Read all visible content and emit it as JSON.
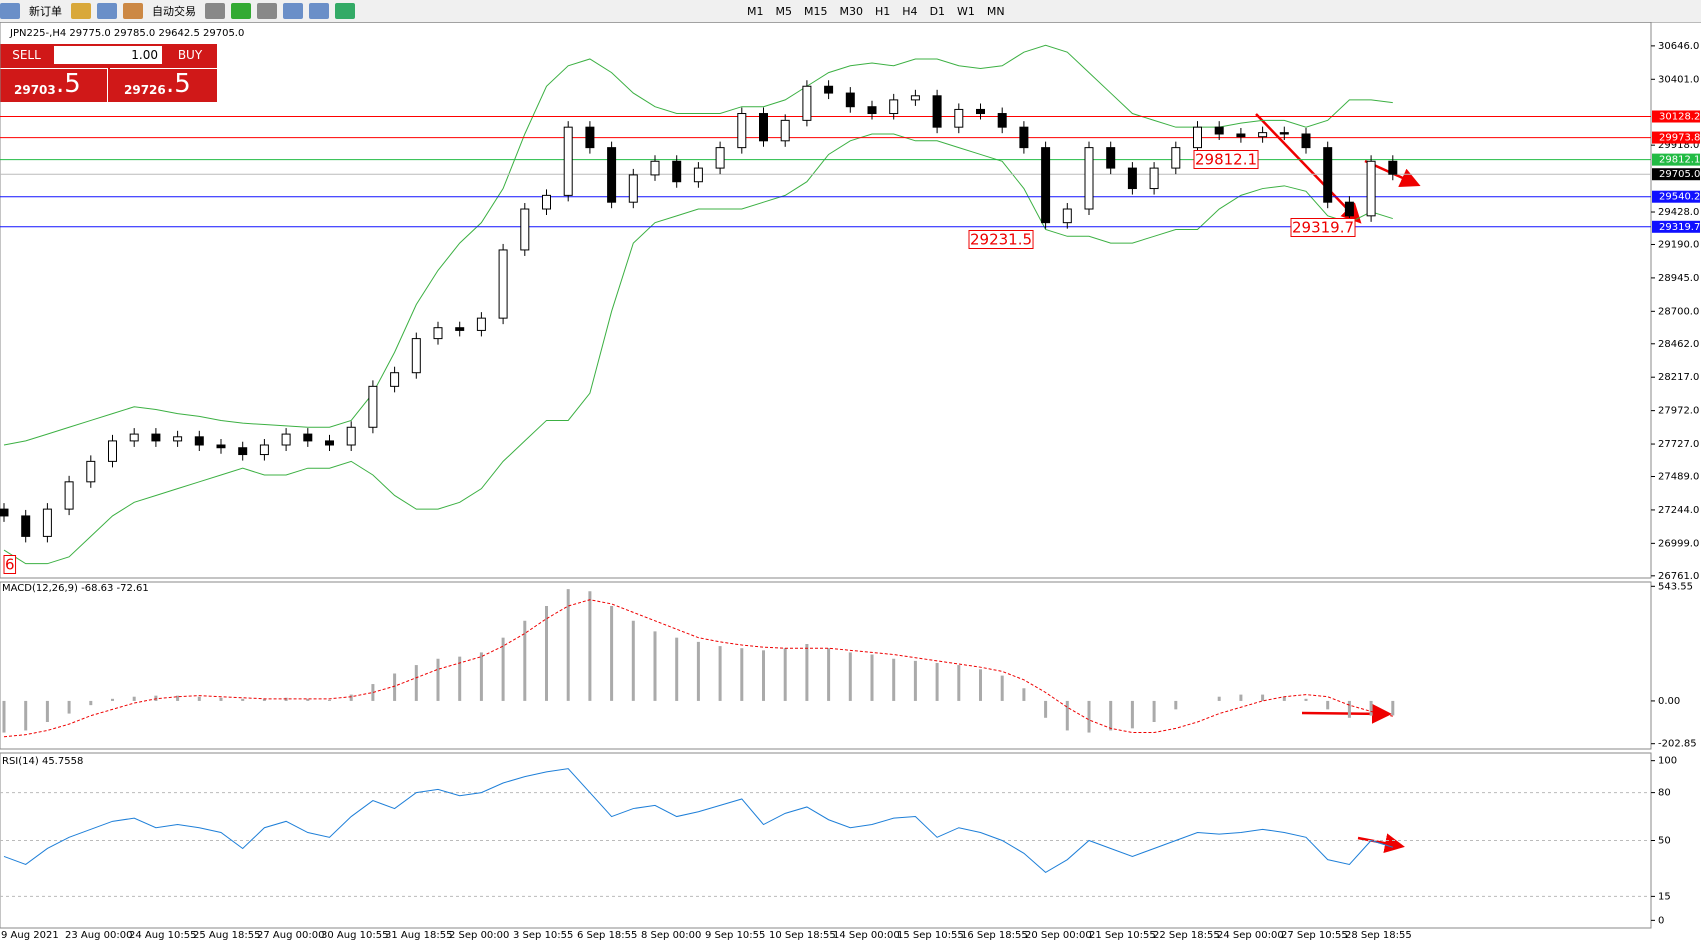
{
  "toolbar": {
    "new_order": "新订单",
    "auto_trade": "自动交易",
    "timeframes": [
      "M1",
      "M5",
      "M15",
      "M30",
      "H1",
      "H4",
      "D1",
      "W1",
      "MN"
    ]
  },
  "trade_panel": {
    "sell": "SELL",
    "buy": "BUY",
    "lots": "1.00",
    "sell_price": "29703",
    "sell_frac": ".5",
    "buy_price": "29726",
    "buy_frac": ".5"
  },
  "chart": {
    "info": "JPN225-,H4  29775.0 29785.0 29642.5 29705.0",
    "ylim": [
      26745,
      30821
    ],
    "yticks": [
      {
        "value": 30646,
        "label": "30646.0"
      },
      {
        "value": 30401,
        "label": "30401.0"
      },
      {
        "value": 29918,
        "label": "29918.0"
      },
      {
        "value": 29428,
        "label": "29428.0"
      },
      {
        "value": 29190,
        "label": "29190.0"
      },
      {
        "value": 28945,
        "label": "28945.0"
      },
      {
        "value": 28700,
        "label": "28700.0"
      },
      {
        "value": 28462,
        "label": "28462.0"
      },
      {
        "value": 28217,
        "label": "28217.0"
      },
      {
        "value": 27972,
        "label": "27972.0"
      },
      {
        "value": 27727,
        "label": "27727.0"
      },
      {
        "value": 27489,
        "label": "27489.0"
      },
      {
        "value": 27244,
        "label": "27244.0"
      },
      {
        "value": 26999,
        "label": "26999.0"
      },
      {
        "value": 26761,
        "label": "26761.0"
      }
    ],
    "levels": [
      {
        "value": 30128.2,
        "label": "30128.2",
        "color": "#ff0000"
      },
      {
        "value": 29973.8,
        "label": "29973.8",
        "color": "#ff0000"
      },
      {
        "value": 29812.1,
        "label": "29812.1",
        "color": "#22bb44"
      },
      {
        "value": 29705,
        "label": "29705.0",
        "color": "#000000"
      },
      {
        "value": 29540.2,
        "label": "29540.2",
        "color": "#1010ff"
      },
      {
        "value": 29319.7,
        "label": "29319.7",
        "color": "#1010ff"
      }
    ],
    "candles": [
      [
        27250,
        27200
      ],
      [
        27200,
        27050
      ],
      [
        27050,
        27250
      ],
      [
        27250,
        27450
      ],
      [
        27450,
        27600
      ],
      [
        27600,
        27750
      ],
      [
        27750,
        27800
      ],
      [
        27800,
        27750
      ],
      [
        27750,
        27780
      ],
      [
        27780,
        27720
      ],
      [
        27720,
        27700
      ],
      [
        27700,
        27650
      ],
      [
        27650,
        27720
      ],
      [
        27720,
        27800
      ],
      [
        27800,
        27750
      ],
      [
        27750,
        27720
      ],
      [
        27720,
        27850
      ],
      [
        27850,
        28150
      ],
      [
        28150,
        28250
      ],
      [
        28250,
        28500
      ],
      [
        28500,
        28580
      ],
      [
        28580,
        28560
      ],
      [
        28560,
        28650
      ],
      [
        28650,
        29150
      ],
      [
        29150,
        29450
      ],
      [
        29450,
        29550
      ],
      [
        29550,
        30050
      ],
      [
        30050,
        29900
      ],
      [
        29900,
        29500
      ],
      [
        29500,
        29700
      ],
      [
        29700,
        29800
      ],
      [
        29800,
        29650
      ],
      [
        29650,
        29750
      ],
      [
        29750,
        29900
      ],
      [
        29900,
        30150
      ],
      [
        30150,
        29950
      ],
      [
        29950,
        30100
      ],
      [
        30100,
        30350
      ],
      [
        30350,
        30300
      ],
      [
        30300,
        30200
      ],
      [
        30200,
        30150
      ],
      [
        30150,
        30250
      ],
      [
        30250,
        30280
      ],
      [
        30280,
        30050
      ],
      [
        30050,
        30180
      ],
      [
        30180,
        30150
      ],
      [
        30150,
        30050
      ],
      [
        30050,
        29900
      ],
      [
        29900,
        29350
      ],
      [
        29350,
        29450
      ],
      [
        29450,
        29900
      ],
      [
        29900,
        29750
      ],
      [
        29750,
        29600
      ],
      [
        29600,
        29750
      ],
      [
        29750,
        29900
      ],
      [
        29900,
        30050
      ],
      [
        30050,
        30000
      ],
      [
        30000,
        29980
      ],
      [
        29980,
        30010
      ],
      [
        30010,
        30000
      ],
      [
        30000,
        29900
      ],
      [
        29900,
        29500
      ],
      [
        29500,
        29400
      ],
      [
        29400,
        29800
      ],
      [
        29800,
        29705
      ]
    ],
    "bands": {
      "color": "#3cb043",
      "upper": [
        27720,
        27750,
        27800,
        27850,
        27900,
        27950,
        28000,
        27980,
        27950,
        27930,
        27900,
        27880,
        27870,
        27860,
        27850,
        27850,
        27900,
        28100,
        28400,
        28750,
        29000,
        29200,
        29350,
        29600,
        30000,
        30350,
        30500,
        30550,
        30450,
        30300,
        30200,
        30150,
        30150,
        30150,
        30200,
        30200,
        30250,
        30350,
        30450,
        30500,
        30520,
        30500,
        30550,
        30550,
        30500,
        30480,
        30500,
        30600,
        30650,
        30600,
        30450,
        30300,
        30150,
        30100,
        30050,
        30050,
        30050,
        30080,
        30100,
        30100,
        30050,
        30100,
        30250,
        30250,
        30230
      ],
      "lower": [
        26950,
        26850,
        26850,
        26900,
        27050,
        27200,
        27300,
        27350,
        27400,
        27450,
        27500,
        27550,
        27500,
        27500,
        27550,
        27550,
        27600,
        27500,
        27350,
        27250,
        27250,
        27300,
        27400,
        27600,
        27750,
        27900,
        27900,
        28100,
        28700,
        29200,
        29350,
        29400,
        29450,
        29450,
        29450,
        29500,
        29550,
        29650,
        29850,
        29950,
        30000,
        30000,
        29950,
        29950,
        29900,
        29850,
        29800,
        29600,
        29300,
        29250,
        29250,
        29200,
        29200,
        29250,
        29300,
        29300,
        29450,
        29550,
        29600,
        29620,
        29580,
        29400,
        29350,
        29430,
        29380
      ]
    },
    "annotations": [
      "29812.1",
      "29231.5",
      "29319.7",
      "6"
    ],
    "x_labels": [
      "9 Aug 2021",
      "23 Aug 00:00",
      "24 Aug 10:55",
      "25 Aug 18:55",
      "27 Aug 00:00",
      "30 Aug 10:55",
      "31 Aug 18:55",
      "2 Sep 00:00",
      "3 Sep 10:55",
      "6 Sep 18:55",
      "8 Sep 00:00",
      "9 Sep 10:55",
      "10 Sep 18:55",
      "14 Sep 00:00",
      "15 Sep 10:55",
      "16 Sep 18:55",
      "20 Sep 00:00",
      "21 Sep 10:55",
      "22 Sep 18:55",
      "24 Sep 00:00",
      "27 Sep 10:55",
      "28 Sep 18:55"
    ]
  },
  "macd": {
    "label": "MACD(12,26,9) -68.63 -72.61",
    "ylim": [
      -228,
      564
    ],
    "yticks": [
      543.55,
      {
        "value": 0,
        "label": "0.00"
      },
      -202.85
    ],
    "histogram": [
      -150,
      -140,
      -100,
      -60,
      -20,
      10,
      20,
      25,
      25,
      20,
      15,
      10,
      10,
      15,
      10,
      5,
      30,
      80,
      130,
      170,
      200,
      210,
      230,
      300,
      380,
      450,
      530,
      520,
      450,
      380,
      330,
      300,
      280,
      260,
      250,
      240,
      250,
      270,
      250,
      230,
      220,
      200,
      190,
      180,
      170,
      150,
      120,
      60,
      -80,
      -140,
      -150,
      -140,
      -130,
      -100,
      -40,
      0,
      20,
      30,
      30,
      20,
      10,
      -40,
      -80,
      -70,
      -68.63
    ],
    "signal": [
      -170,
      -160,
      -140,
      -110,
      -70,
      -40,
      -10,
      10,
      20,
      25,
      20,
      15,
      10,
      10,
      10,
      10,
      20,
      40,
      70,
      110,
      150,
      180,
      210,
      260,
      320,
      390,
      450,
      480,
      460,
      420,
      380,
      340,
      300,
      280,
      265,
      255,
      250,
      250,
      250,
      240,
      230,
      220,
      205,
      190,
      175,
      160,
      140,
      100,
      40,
      -30,
      -90,
      -130,
      -150,
      -150,
      -130,
      -100,
      -60,
      -30,
      0,
      20,
      30,
      20,
      -20,
      -50,
      -72.61
    ]
  },
  "rsi": {
    "label": "RSI(14) 45.7558",
    "ylim": [
      -4.8,
      104.8
    ],
    "yticks": [
      100,
      80,
      50,
      15,
      0
    ],
    "grid_levels": [
      80,
      50,
      15
    ],
    "values": [
      40,
      35,
      45,
      52,
      57,
      62,
      64,
      58,
      60,
      58,
      55,
      45,
      58,
      62,
      55,
      52,
      65,
      75,
      70,
      80,
      82,
      78,
      80,
      86,
      90,
      93,
      95,
      80,
      65,
      70,
      72,
      65,
      68,
      72,
      76,
      60,
      67,
      71,
      63,
      58,
      60,
      64,
      65,
      52,
      58,
      55,
      50,
      42,
      30,
      38,
      50,
      45,
      40,
      45,
      50,
      55,
      54,
      55,
      57,
      55,
      52,
      38,
      35,
      50,
      45.7558
    ]
  }
}
